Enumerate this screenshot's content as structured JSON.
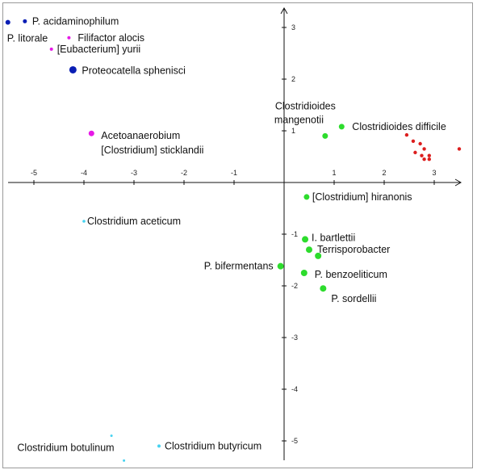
{
  "chart_data": {
    "type": "scatter",
    "title": "",
    "xlabel": "",
    "ylabel": "",
    "xlim": [
      -5.5,
      3.5
    ],
    "ylim": [
      -5.4,
      3.3
    ],
    "grid": false,
    "x_ticks": [
      -5,
      -4,
      -3,
      -2,
      -1,
      1,
      2,
      3
    ],
    "y_ticks": [
      -5,
      -4,
      -3,
      -2,
      -1,
      1,
      2,
      3
    ],
    "colors": {
      "dark_blue": "#0a1eb4",
      "magenta": "#e619e6",
      "green": "#2ddc2d",
      "cyan": "#46d2f0",
      "red": "#dc1e1e"
    },
    "points": [
      {
        "label": "P. acidaminophilum",
        "x": -5.18,
        "y": 3.12,
        "color": "#0a1eb4",
        "size": 2.5
      },
      {
        "label": "P. litorale",
        "x": -5.52,
        "y": 3.1,
        "color": "#0a1eb4",
        "size": 3
      },
      {
        "label": "Filifactor alocis",
        "x": -4.3,
        "y": 2.8,
        "color": "#e619e6",
        "size": 2
      },
      {
        "label": "[Eubacterium] yurii",
        "x": -4.65,
        "y": 2.58,
        "color": "#e619e6",
        "size": 2
      },
      {
        "label": "Proteocatella sphenisci",
        "x": -4.22,
        "y": 2.18,
        "color": "#0a1eb4",
        "size": 4.5
      },
      {
        "label": "Acetoanaerobium [Clostridium] sticklandii",
        "x": -3.85,
        "y": 0.95,
        "color": "#e619e6",
        "size": 3.5
      },
      {
        "label": "Clostridioides mangenotii",
        "x": 0.82,
        "y": 0.9,
        "color": "#2ddc2d",
        "size": 3.5
      },
      {
        "label": "Clostridioides difficile",
        "x": 1.15,
        "y": 1.08,
        "color": "#2ddc2d",
        "size": 3.5
      },
      {
        "label": "[Clostridium] hiranonis",
        "x": 0.45,
        "y": -0.28,
        "color": "#2ddc2d",
        "size": 3.5
      },
      {
        "label": "Clostridium aceticum",
        "x": -4.0,
        "y": -0.75,
        "color": "#46d2f0",
        "size": 1.8
      },
      {
        "label": "I. bartlettii",
        "x": 0.42,
        "y": -1.1,
        "color": "#2ddc2d",
        "size": 4
      },
      {
        "label": "Terrisporobacter",
        "x": 0.5,
        "y": -1.3,
        "color": "#2ddc2d",
        "size": 4
      },
      {
        "label": "",
        "x": 0.68,
        "y": -1.42,
        "color": "#2ddc2d",
        "size": 4
      },
      {
        "label": "P. bifermentans",
        "x": -0.07,
        "y": -1.62,
        "color": "#2ddc2d",
        "size": 4
      },
      {
        "label": "P. benzoeliticum",
        "x": 0.4,
        "y": -1.75,
        "color": "#2ddc2d",
        "size": 4
      },
      {
        "label": "P. sordellii",
        "x": 0.78,
        "y": -2.05,
        "color": "#2ddc2d",
        "size": 4
      },
      {
        "label": "",
        "x": -3.45,
        "y": -4.9,
        "color": "#46d2f0",
        "size": 1.5
      },
      {
        "label": "Clostridium botulinum",
        "x": -3.2,
        "y": -5.38,
        "color": "#46d2f0",
        "size": 1.5
      },
      {
        "label": "Clostridium butyricum",
        "x": -2.5,
        "y": -5.1,
        "color": "#46d2f0",
        "size": 2
      },
      {
        "label": "",
        "x": 2.45,
        "y": 0.92,
        "color": "#dc1e1e",
        "size": 2.2
      },
      {
        "label": "",
        "x": 2.58,
        "y": 0.8,
        "color": "#dc1e1e",
        "size": 2.2
      },
      {
        "label": "",
        "x": 2.72,
        "y": 0.75,
        "color": "#dc1e1e",
        "size": 2.2
      },
      {
        "label": "",
        "x": 2.8,
        "y": 0.65,
        "color": "#dc1e1e",
        "size": 2.2
      },
      {
        "label": "",
        "x": 2.62,
        "y": 0.58,
        "color": "#dc1e1e",
        "size": 2.2
      },
      {
        "label": "",
        "x": 2.75,
        "y": 0.52,
        "color": "#dc1e1e",
        "size": 2.2
      },
      {
        "label": "",
        "x": 2.9,
        "y": 0.52,
        "color": "#dc1e1e",
        "size": 2.2
      },
      {
        "label": "",
        "x": 2.8,
        "y": 0.45,
        "color": "#dc1e1e",
        "size": 2.2
      },
      {
        "label": "",
        "x": 2.9,
        "y": 0.45,
        "color": "#dc1e1e",
        "size": 2.2
      },
      {
        "label": "",
        "x": 3.5,
        "y": 0.65,
        "color": "#dc1e1e",
        "size": 2.2
      }
    ]
  }
}
